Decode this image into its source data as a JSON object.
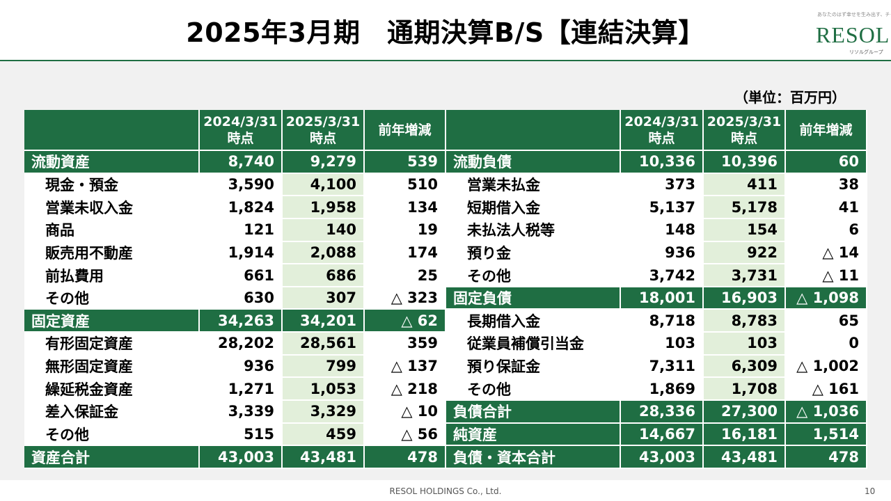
{
  "header": {
    "title": "2025年3月期　通期決算B/S【連結決算】"
  },
  "logo": {
    "tagline": "あなたのはず幸せを生み出す、チャンスをつかむ",
    "mark": "RESOL",
    "sub": "リソルグループ"
  },
  "unit": "（単位：百万円）",
  "columns": {
    "prev": [
      "2024/3/31",
      "時点"
    ],
    "curr": [
      "2025/3/31",
      "時点"
    ],
    "diff": "前年増減"
  },
  "rows": [
    {
      "l": {
        "label": "流動資産",
        "prev": "8,740",
        "curr": "9,279",
        "diff": "539",
        "total": true
      },
      "r": {
        "label": "流動負債",
        "prev": "10,336",
        "curr": "10,396",
        "diff": "60",
        "total": true
      }
    },
    {
      "l": {
        "label": "現金・預金",
        "prev": "3,590",
        "curr": "4,100",
        "diff": "510"
      },
      "r": {
        "label": "営業未払金",
        "prev": "373",
        "curr": "411",
        "diff": "38"
      }
    },
    {
      "l": {
        "label": "営業未収入金",
        "prev": "1,824",
        "curr": "1,958",
        "diff": "134"
      },
      "r": {
        "label": "短期借入金",
        "prev": "5,137",
        "curr": "5,178",
        "diff": "41"
      }
    },
    {
      "l": {
        "label": "商品",
        "prev": "121",
        "curr": "140",
        "diff": "19"
      },
      "r": {
        "label": "未払法人税等",
        "prev": "148",
        "curr": "154",
        "diff": "6"
      }
    },
    {
      "l": {
        "label": "販売用不動産",
        "prev": "1,914",
        "curr": "2,088",
        "diff": "174"
      },
      "r": {
        "label": "預り金",
        "prev": "936",
        "curr": "922",
        "diff": "△ 14"
      }
    },
    {
      "l": {
        "label": "前払費用",
        "prev": "661",
        "curr": "686",
        "diff": "25"
      },
      "r": {
        "label": "その他",
        "prev": "3,742",
        "curr": "3,731",
        "diff": "△ 11"
      }
    },
    {
      "l": {
        "label": "その他",
        "prev": "630",
        "curr": "307",
        "diff": "△ 323"
      },
      "r": {
        "label": "固定負債",
        "prev": "18,001",
        "curr": "16,903",
        "diff": "△ 1,098",
        "total": true
      }
    },
    {
      "l": {
        "label": "固定資産",
        "prev": "34,263",
        "curr": "34,201",
        "diff": "△ 62",
        "total": true
      },
      "r": {
        "label": "長期借入金",
        "prev": "8,718",
        "curr": "8,783",
        "diff": "65"
      }
    },
    {
      "l": {
        "label": "有形固定資産",
        "prev": "28,202",
        "curr": "28,561",
        "diff": "359"
      },
      "r": {
        "label": "従業員補償引当金",
        "prev": "103",
        "curr": "103",
        "diff": "0"
      }
    },
    {
      "l": {
        "label": "無形固定資産",
        "prev": "936",
        "curr": "799",
        "diff": "△ 137"
      },
      "r": {
        "label": "預り保証金",
        "prev": "7,311",
        "curr": "6,309",
        "diff": "△ 1,002"
      }
    },
    {
      "l": {
        "label": "繰延税金資産",
        "prev": "1,271",
        "curr": "1,053",
        "diff": "△ 218"
      },
      "r": {
        "label": "その他",
        "prev": "1,869",
        "curr": "1,708",
        "diff": "△ 161"
      }
    },
    {
      "l": {
        "label": "差入保証金",
        "prev": "3,339",
        "curr": "3,329",
        "diff": "△ 10"
      },
      "r": {
        "label": "負債合計",
        "prev": "28,336",
        "curr": "27,300",
        "diff": "△ 1,036",
        "total": true
      }
    },
    {
      "l": {
        "label": "その他",
        "prev": "515",
        "curr": "459",
        "diff": "△ 56"
      },
      "r": {
        "label": "純資産",
        "prev": "14,667",
        "curr": "16,181",
        "diff": "1,514",
        "total": true
      }
    },
    {
      "l": {
        "label": "資産合計",
        "prev": "43,003",
        "curr": "43,481",
        "diff": "478",
        "total": true
      },
      "r": {
        "label": "負債・資本合計",
        "prev": "43,003",
        "curr": "43,481",
        "diff": "478",
        "total": true
      }
    }
  ],
  "footer": {
    "company": "RESOL HOLDINGS Co., Ltd.",
    "page": "10"
  }
}
